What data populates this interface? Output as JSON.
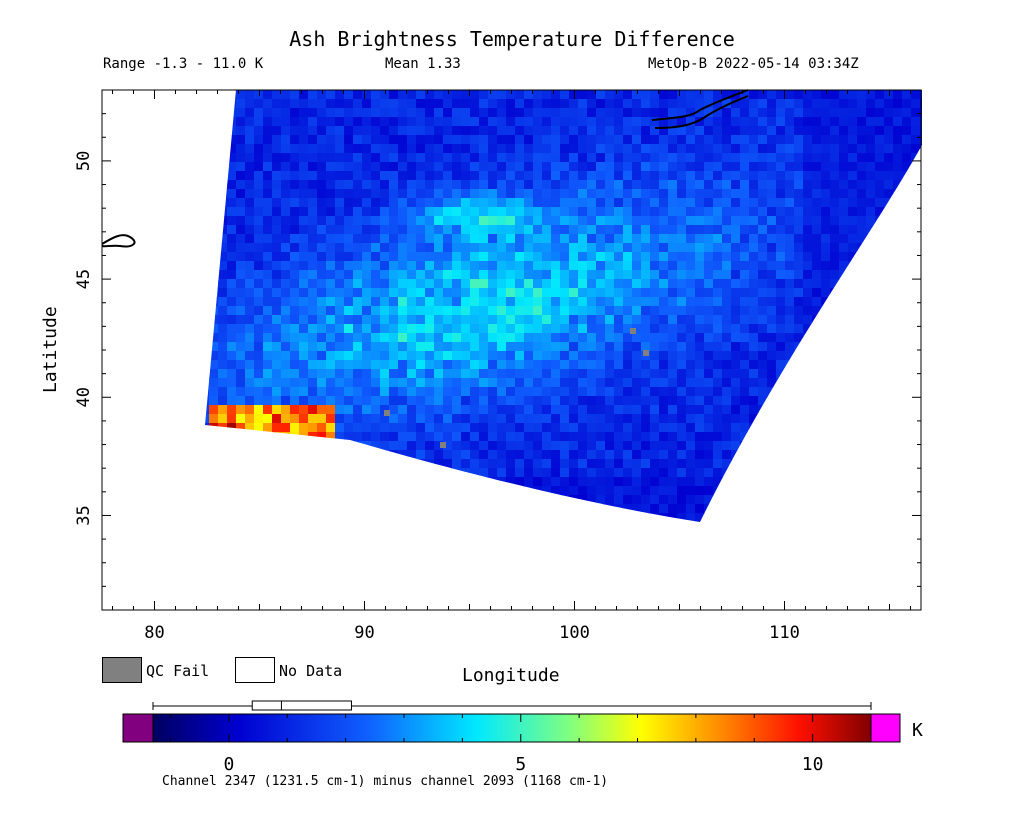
{
  "title": "Ash Brightness Temperature Difference",
  "stats": {
    "range": "Range -1.3 - 11.0 K",
    "mean": "Mean 1.33",
    "satellite_time": "MetOp-B 2022-05-14 03:34Z"
  },
  "axes": {
    "xlabel": "Longitude",
    "ylabel": "Latitude",
    "xticks": [
      "80",
      "90",
      "100",
      "110"
    ],
    "yticks": [
      "35",
      "40",
      "45",
      "50"
    ]
  },
  "legend": {
    "qc_fail": "QC Fail",
    "no_data": "No Data",
    "qc_color": "#808080"
  },
  "colorbar": {
    "unit": "K",
    "ticks": [
      "0",
      "5",
      "10"
    ],
    "min": -1.3,
    "max": 11.0,
    "under_color": "#800080",
    "over_color": "#ff00ff"
  },
  "footer": "Channel 2347 (1231.5 cm-1) minus channel 2093 (1168 cm-1)",
  "chart_data": {
    "type": "heatmap",
    "title": "Ash Brightness Temperature Difference",
    "xlabel": "Longitude",
    "ylabel": "Latitude",
    "xlim": [
      77.5,
      116.5
    ],
    "ylim": [
      31,
      53
    ],
    "value_range": [
      -1.3,
      11.0
    ],
    "mean": 1.33,
    "units": "K",
    "hotspot": {
      "lon": [
        82.5,
        88.5
      ],
      "lat": [
        38.5,
        40
      ],
      "values": [
        7,
        11
      ]
    },
    "box_plot": {
      "whisker_low": -1.3,
      "q1": 0.4,
      "median": 0.9,
      "q3": 2.1,
      "whisker_high": 11.0
    }
  }
}
